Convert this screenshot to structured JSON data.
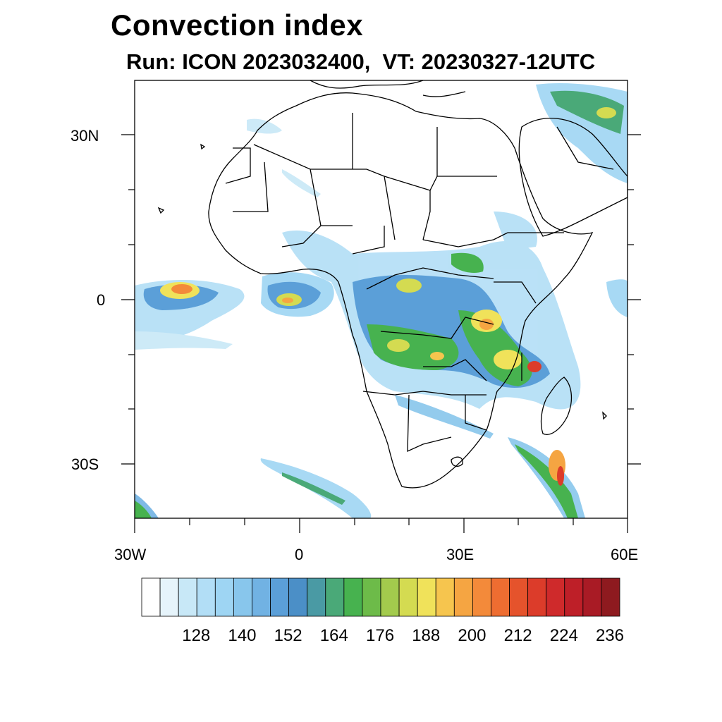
{
  "title": "Convection index",
  "subtitle": "Run: ICON 2023032400,  VT: 20230327-12UTC",
  "map": {
    "region": "Africa and surrounding oceans",
    "lat_ticks": [
      {
        "id": "lat-30n",
        "label": "30N"
      },
      {
        "id": "lat-0",
        "label": "0"
      },
      {
        "id": "lat-30s",
        "label": "30S"
      }
    ],
    "lon_ticks": [
      {
        "id": "lon-30w",
        "label": "30W"
      },
      {
        "id": "lon-0",
        "label": "0"
      },
      {
        "id": "lon-30e",
        "label": "30E"
      },
      {
        "id": "lon-60e",
        "label": "60E"
      }
    ]
  },
  "colorbar": {
    "colors": [
      "#ffffff",
      "#e6f4fb",
      "#c8e8f7",
      "#b2def6",
      "#9ed5f3",
      "#88c6ec",
      "#71b2e3",
      "#5b9fd8",
      "#4b8fc7",
      "#4a9aa4",
      "#4aa978",
      "#47b24f",
      "#6dbb49",
      "#a3cb4d",
      "#d4db51",
      "#f0e25a",
      "#f6c54e",
      "#f5a542",
      "#f38a3a",
      "#ee6d31",
      "#e5532c",
      "#dc3c2a",
      "#cf2a2b",
      "#be1f28",
      "#a91b25",
      "#8e1a1f"
    ],
    "tick_labels": [
      "128",
      "140",
      "152",
      "164",
      "176",
      "188",
      "200",
      "212",
      "224",
      "236"
    ]
  },
  "field_levels": {
    "low": "#9ed5f3",
    "mid_low": "#5b9fd8",
    "mid": "#47b24f",
    "mid_high": "#d4db51",
    "high": "#f5a542",
    "very_high": "#dc3c2a"
  },
  "colors": {
    "border": "#000000",
    "frame": "#000000",
    "background": "#ffffff"
  }
}
